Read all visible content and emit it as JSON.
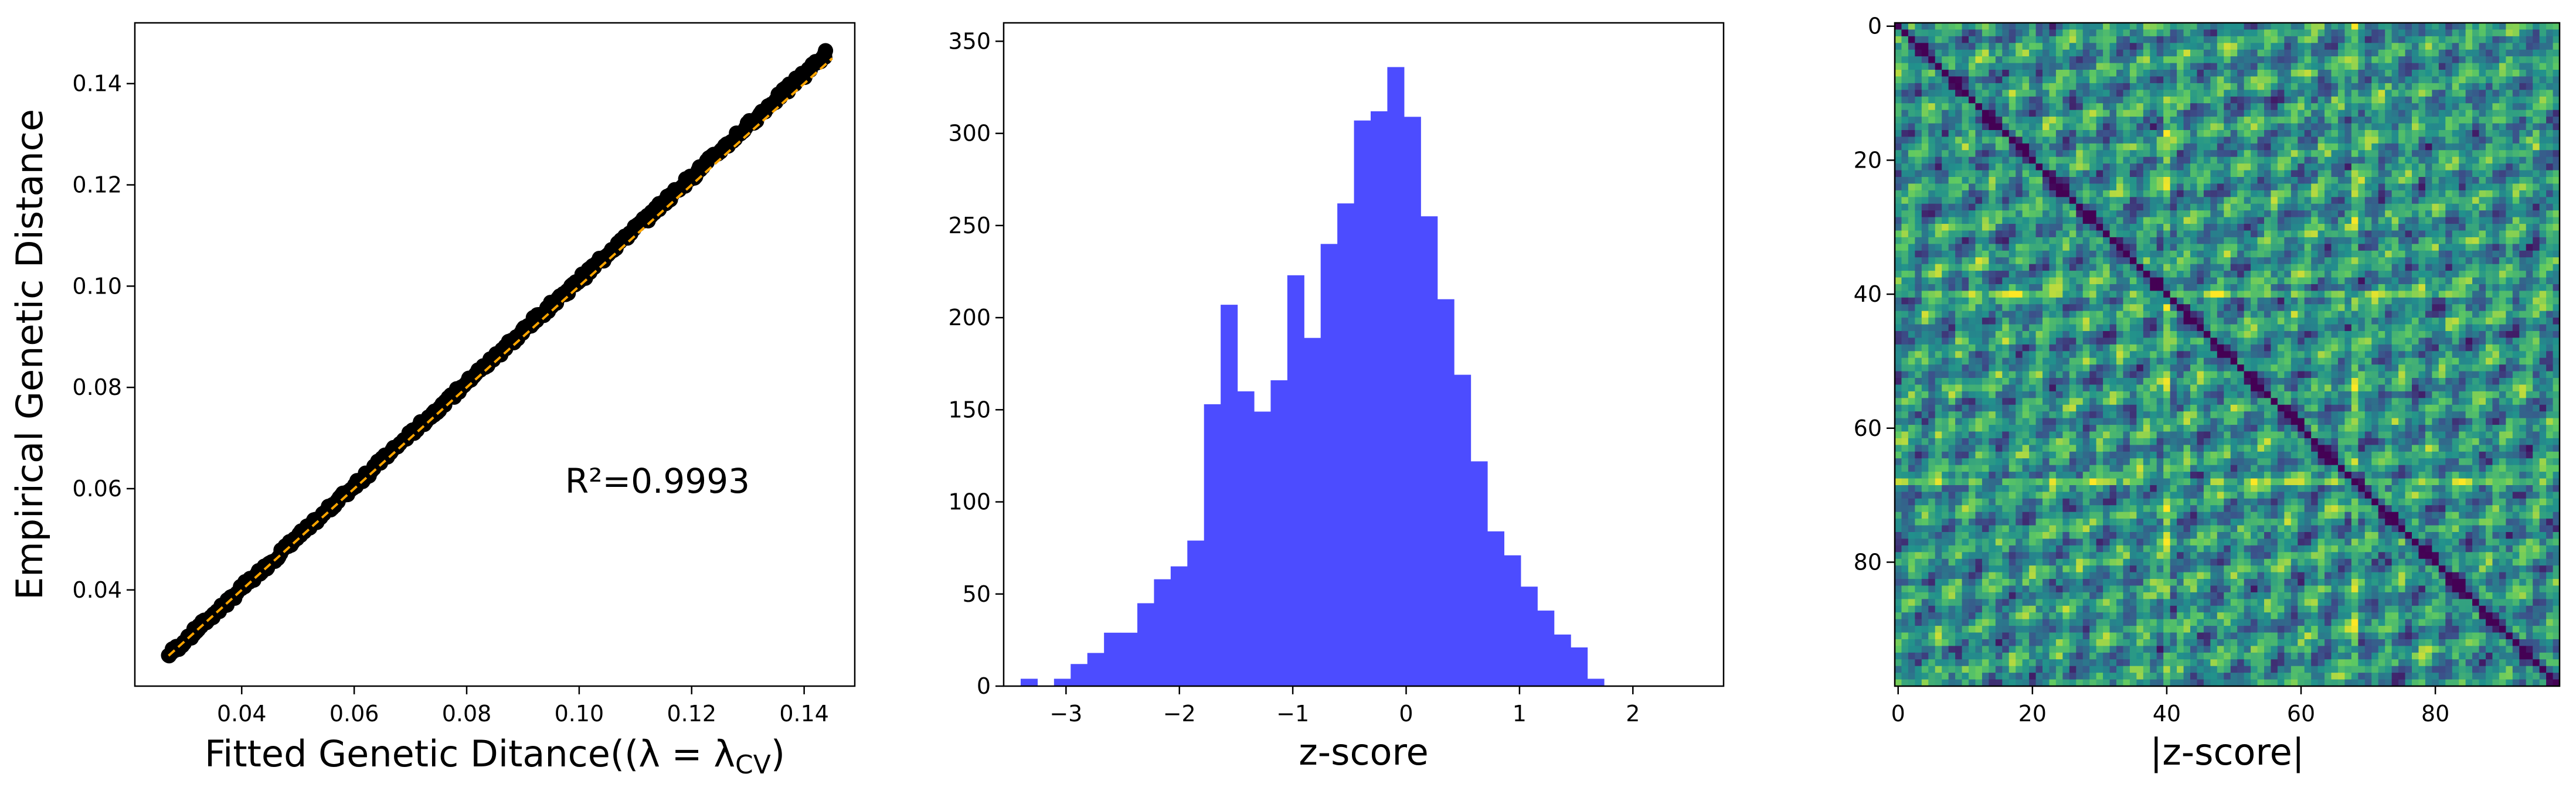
{
  "figure": {
    "panels": [
      {
        "id": "scatter",
        "xlabel": "Fitted Genetic Ditance((λ = λ",
        "xlabel_sub": "CV",
        "xlabel_end": ")",
        "ylabel": "Empirical Genetic Distance"
      },
      {
        "id": "histogram",
        "xlabel": "z-score"
      },
      {
        "id": "heatmap",
        "xlabel": "|z-score|"
      }
    ]
  },
  "chart_data": [
    {
      "type": "scatter",
      "title": "",
      "xlabel": "Fitted Genetic Ditance((λ = λ_CV)",
      "ylabel": "Empirical Genetic Distance",
      "xlim": [
        0.021,
        0.149
      ],
      "ylim": [
        0.021,
        0.152
      ],
      "xticks": [
        0.04,
        0.06,
        0.08,
        0.1,
        0.12,
        0.14
      ],
      "xtick_labels": [
        "0.04",
        "0.06",
        "0.08",
        "0.10",
        "0.12",
        "0.14"
      ],
      "yticks": [
        0.04,
        0.06,
        0.08,
        0.1,
        0.12,
        0.14
      ],
      "ytick_labels": [
        "0.04",
        "0.06",
        "0.08",
        "0.10",
        "0.12",
        "0.14"
      ],
      "points_x_range": [
        0.027,
        0.144
      ],
      "points_y_range": [
        0.027,
        0.146
      ],
      "approx_point_count": 400,
      "point_color": "#000000",
      "fit_line": {
        "x": [
          0.027,
          0.145
        ],
        "y": [
          0.027,
          0.145
        ],
        "color": "#ffa500",
        "style": "dashed"
      },
      "annotation": "R²=0.9993",
      "annotation_position": {
        "x": 0.0975,
        "y": 0.0615
      }
    },
    {
      "type": "bar",
      "title": "",
      "xlabel": "z-score",
      "ylabel": "",
      "xlim": [
        -3.55,
        2.8
      ],
      "ylim": [
        0,
        360
      ],
      "xticks": [
        -3,
        -2,
        -1,
        0,
        1,
        2
      ],
      "xtick_labels": [
        "−3",
        "−2",
        "−1",
        "0",
        "1",
        "2"
      ],
      "yticks": [
        0,
        50,
        100,
        150,
        200,
        250,
        300,
        350
      ],
      "ytick_labels": [
        "0",
        "50",
        "100",
        "150",
        "200",
        "250",
        "300",
        "350"
      ],
      "bin_start": -3.4,
      "bin_width": 0.147,
      "counts": [
        4,
        0,
        4,
        12,
        18,
        29,
        29,
        45,
        58,
        65,
        79,
        153,
        207,
        160,
        149,
        166,
        223,
        189,
        240,
        262,
        307,
        312,
        336,
        309,
        255,
        210,
        169,
        122,
        84,
        71,
        54,
        41,
        28,
        21,
        4
      ],
      "color": "#4c4cff"
    },
    {
      "type": "heatmap",
      "title": "",
      "xlabel": "|z-score|",
      "ylabel": "",
      "shape": [
        99,
        99
      ],
      "xticks": [
        0,
        20,
        40,
        60,
        80
      ],
      "xtick_labels": [
        "0",
        "20",
        "40",
        "60",
        "80"
      ],
      "yticks": [
        0,
        20,
        40,
        60,
        80
      ],
      "ytick_labels": [
        "0",
        "20",
        "40",
        "60",
        "80"
      ],
      "colormap": [
        "#440154",
        "#3b528b",
        "#21918c",
        "#5ec962",
        "#fde725"
      ],
      "diagonal_value": 0,
      "highlight_rows_cols": [
        40,
        68
      ],
      "note": "values of each cell are not printed in the figure"
    }
  ]
}
